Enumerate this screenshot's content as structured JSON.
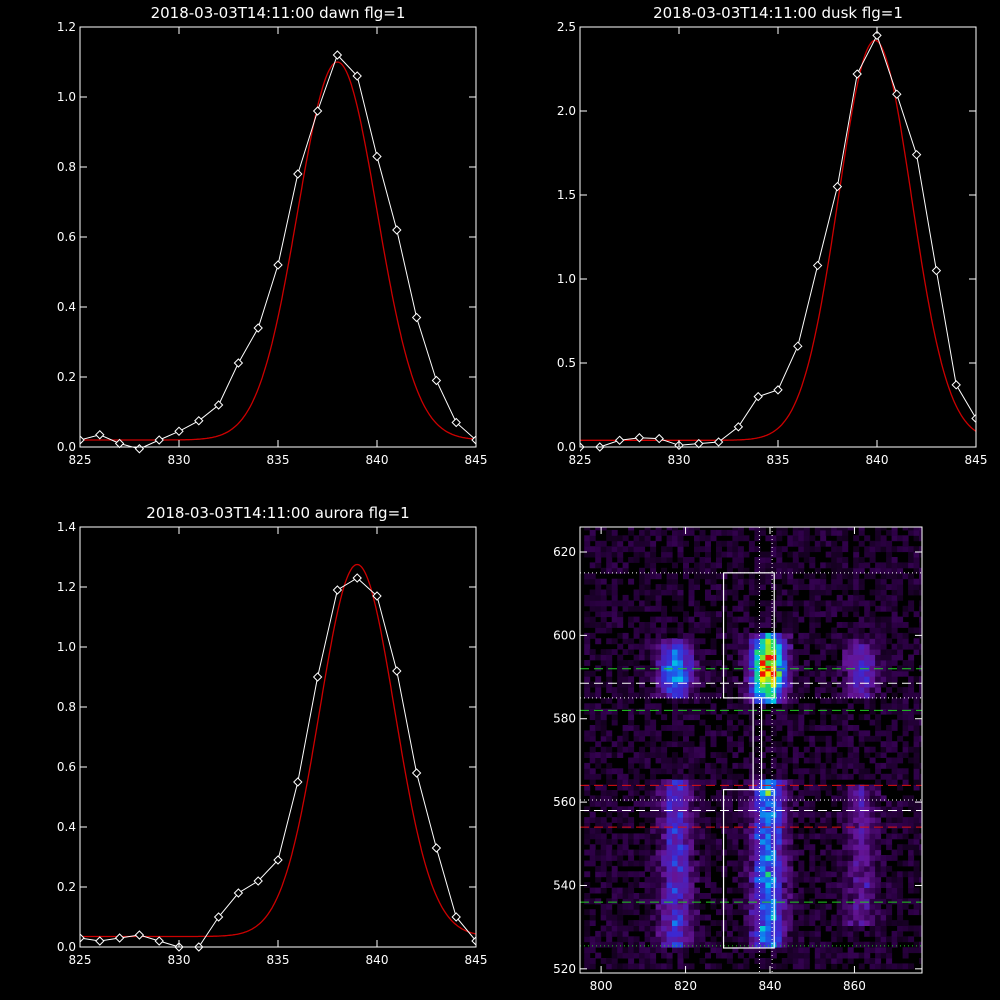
{
  "colors": {
    "background": "#000000",
    "axes": "#ffffff",
    "data_line": "#ffffff",
    "fit_line": "#cc0000",
    "guide_green": "#22cc22",
    "guide_red": "#dd1111"
  },
  "chart_data": [
    {
      "type": "line",
      "title": "2018-03-03T14:11:00 dawn flg=1",
      "xlim": [
        825,
        845
      ],
      "ylim": [
        0,
        1.2
      ],
      "xticks": [
        "825",
        "830",
        "835",
        "840",
        "845"
      ],
      "yticks": [
        "0.0",
        "0.2",
        "0.4",
        "0.6",
        "0.8",
        "1.0",
        "1.2"
      ],
      "grid": false,
      "series": [
        {
          "style": "data-diamonds",
          "x": [
            825,
            826,
            827,
            828,
            829,
            830,
            831,
            832,
            833,
            834,
            835,
            836,
            837,
            838,
            839,
            840,
            841,
            842,
            843,
            844,
            845
          ],
          "y": [
            0.02,
            0.035,
            0.01,
            -0.005,
            0.02,
            0.045,
            0.075,
            0.12,
            0.24,
            0.34,
            0.52,
            0.78,
            0.96,
            1.12,
            1.06,
            0.83,
            0.62,
            0.37,
            0.19,
            0.07,
            0.02
          ]
        },
        {
          "style": "fit",
          "gauss": {
            "center": 838.0,
            "sigma": 2.0,
            "amplitude": 1.08,
            "offset": 0.02
          }
        }
      ]
    },
    {
      "type": "line",
      "title": "2018-03-03T14:11:00 dusk flg=1",
      "xlim": [
        825,
        845
      ],
      "ylim": [
        0,
        2.5
      ],
      "xticks": [
        "825",
        "830",
        "835",
        "840",
        "845"
      ],
      "yticks": [
        "0.0",
        "0.5",
        "1.0",
        "1.5",
        "2.0",
        "2.5"
      ],
      "grid": false,
      "series": [
        {
          "style": "data-diamonds",
          "x": [
            825,
            826,
            827,
            828,
            829,
            830,
            831,
            832,
            833,
            834,
            835,
            836,
            837,
            838,
            839,
            840,
            841,
            842,
            843,
            844,
            845
          ],
          "y": [
            0.0,
            0.0,
            0.04,
            0.055,
            0.05,
            0.01,
            0.02,
            0.03,
            0.12,
            0.3,
            0.34,
            0.6,
            1.08,
            1.55,
            2.22,
            2.45,
            2.1,
            1.74,
            1.05,
            0.37,
            0.17
          ]
        },
        {
          "style": "fit",
          "gauss": {
            "center": 839.9,
            "sigma": 1.85,
            "amplitude": 2.38,
            "offset": 0.04
          }
        }
      ]
    },
    {
      "type": "line",
      "title": "2018-03-03T14:11:00 aurora flg=1",
      "xlim": [
        825,
        845
      ],
      "ylim": [
        0,
        1.4
      ],
      "xticks": [
        "825",
        "830",
        "835",
        "840",
        "845"
      ],
      "yticks": [
        "0.0",
        "0.2",
        "0.4",
        "0.6",
        "0.8",
        "1.0",
        "1.2",
        "1.4"
      ],
      "grid": false,
      "series": [
        {
          "style": "data-diamonds",
          "x": [
            825,
            826,
            827,
            828,
            829,
            830,
            831,
            832,
            833,
            834,
            835,
            836,
            837,
            838,
            839,
            840,
            841,
            842,
            843,
            844,
            845
          ],
          "y": [
            0.03,
            0.02,
            0.03,
            0.04,
            0.02,
            0.0,
            0.0,
            0.1,
            0.18,
            0.22,
            0.29,
            0.55,
            0.9,
            1.19,
            1.23,
            1.17,
            0.92,
            0.58,
            0.33,
            0.1,
            0.02
          ]
        },
        {
          "style": "fit",
          "gauss": {
            "center": 839.0,
            "sigma": 1.9,
            "amplitude": 1.24,
            "offset": 0.035
          }
        }
      ]
    },
    {
      "type": "heatmap",
      "title": "",
      "xlim": [
        795,
        876
      ],
      "ylim": [
        519,
        626
      ],
      "xticks": [
        "800",
        "820",
        "840",
        "860"
      ],
      "yticks": [
        "520",
        "540",
        "560",
        "580",
        "600",
        "620"
      ],
      "grid": false,
      "colormap": "rainbow (black-purple-blue-cyan-green-yellow-red)",
      "emission_columns": [
        {
          "center": 817,
          "upper_rows": [
            584,
            598
          ],
          "lower_rows": [
            525,
            565
          ],
          "upper_peak": 0.55,
          "lower_peak": 0.38
        },
        {
          "center": 839,
          "upper_rows": [
            583,
            600
          ],
          "lower_rows": [
            525,
            565
          ],
          "upper_peak": 1.0,
          "lower_peak": 0.6
        },
        {
          "center": 861,
          "upper_rows": [
            584,
            598
          ],
          "lower_rows": [
            530,
            563
          ],
          "upper_peak": 0.3,
          "lower_peak": 0.22
        }
      ],
      "boxes": [
        {
          "x": [
            829,
            841
          ],
          "y": [
            585,
            615
          ]
        },
        {
          "x": [
            829,
            841
          ],
          "y": [
            525,
            563
          ]
        },
        {
          "x": [
            836,
            838
          ],
          "y": [
            563,
            585
          ]
        }
      ],
      "vertical_dotted_lines": [
        837.5,
        840.5
      ],
      "horizontal_lines": [
        {
          "y": 615,
          "style": "dotted",
          "color": "white"
        },
        {
          "y": 592,
          "style": "dashed",
          "color": "green"
        },
        {
          "y": 588.5,
          "style": "dashed",
          "color": "white"
        },
        {
          "y": 585,
          "style": "dotted",
          "color": "white"
        },
        {
          "y": 582,
          "style": "dashed",
          "color": "green"
        },
        {
          "y": 564,
          "style": "dashed",
          "color": "red"
        },
        {
          "y": 560.5,
          "style": "dotted",
          "color": "white"
        },
        {
          "y": 558,
          "style": "dashed",
          "color": "white"
        },
        {
          "y": 554,
          "style": "dashed",
          "color": "red"
        },
        {
          "y": 536,
          "style": "dashed",
          "color": "green"
        },
        {
          "y": 525.5,
          "style": "dotted",
          "color": "green"
        }
      ]
    }
  ]
}
